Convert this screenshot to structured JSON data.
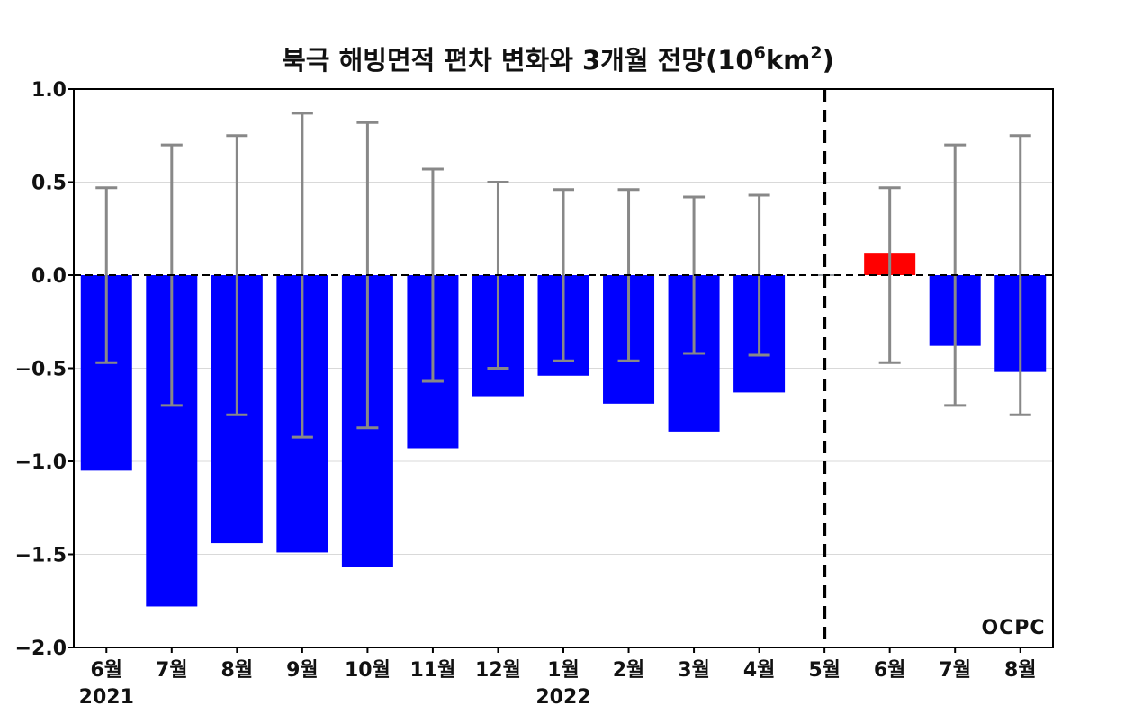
{
  "chart_data": {
    "type": "bar",
    "title": "북극 해빙면적 편차 변화와 3개월 전망(10",
    "title_sup1": "6",
    "title_mid": "km",
    "title_sup2": "2",
    "title_end": ")",
    "xlabel": "",
    "ylabel": "",
    "ylim": [
      -2.0,
      1.0
    ],
    "yticks": [
      "1.0",
      "0.5",
      "0.0",
      "−0.5",
      "−1.0",
      "−1.5",
      "−2.0"
    ],
    "ytick_values": [
      1.0,
      0.5,
      0.0,
      -0.5,
      -1.0,
      -1.5,
      -2.0
    ],
    "grid": true,
    "categories": [
      "6월",
      "7월",
      "8월",
      "9월",
      "10월",
      "11월",
      "12월",
      "1월",
      "2월",
      "3월",
      "4월",
      "5월",
      "6월",
      "7월",
      "8월"
    ],
    "year_labels": [
      {
        "text": "2021",
        "category_index": 0
      },
      {
        "text": "2022",
        "category_index": 7
      }
    ],
    "values": [
      -1.05,
      -1.78,
      -1.44,
      -1.49,
      -1.57,
      -0.93,
      -0.65,
      -0.54,
      -0.69,
      -0.84,
      -0.63,
      0.0,
      0.12,
      -0.38,
      -0.52
    ],
    "error": [
      0.47,
      0.7,
      0.75,
      0.87,
      0.82,
      0.57,
      0.5,
      0.46,
      0.46,
      0.42,
      0.43,
      null,
      0.47,
      0.7,
      0.75
    ],
    "forecast_start_index": 11,
    "colors": {
      "negative": "#0000ff",
      "positive": "#ff0000",
      "error_bar": "#888888",
      "grid": "#d9d9d9",
      "zero_line": "#000000",
      "divider": "#000000"
    },
    "logo": "OCPC"
  }
}
